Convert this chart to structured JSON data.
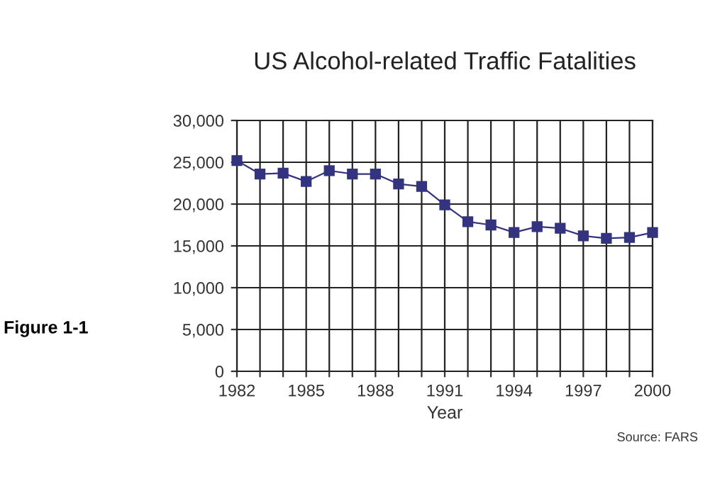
{
  "chart_data": {
    "type": "line",
    "title": "US Alcohol-related Traffic Fatalities",
    "xlabel": "Year",
    "x": [
      1982,
      1983,
      1984,
      1985,
      1986,
      1987,
      1988,
      1989,
      1990,
      1991,
      1992,
      1993,
      1994,
      1995,
      1996,
      1997,
      1998,
      1999,
      2000
    ],
    "series": [
      {
        "color": "#333380",
        "values": [
          25200,
          23600,
          23700,
          22700,
          24000,
          23600,
          23600,
          22400,
          22100,
          19900,
          17900,
          17500,
          16600,
          17300,
          17100,
          16200,
          15900,
          16000,
          16600
        ]
      }
    ],
    "xlim": [
      1982,
      2000
    ],
    "xticks": [
      1982,
      {
        "value": 1983,
        "label": null
      },
      {
        "value": 1984,
        "label": null
      },
      1985,
      {
        "value": 1986,
        "label": null
      },
      {
        "value": 1987,
        "label": null
      },
      1988,
      {
        "value": 1989,
        "label": null
      },
      {
        "value": 1990,
        "label": null
      },
      1991,
      {
        "value": 1992,
        "label": null
      },
      {
        "value": 1993,
        "label": null
      },
      1994,
      {
        "value": 1995,
        "label": null
      },
      {
        "value": 1996,
        "label": null
      },
      1997,
      {
        "value": 1998,
        "label": null
      },
      {
        "value": 1999,
        "label": null
      },
      2000
    ],
    "ylim": [
      0,
      30000
    ],
    "yticks": [
      {
        "value": 0,
        "label": "0"
      },
      {
        "value": 5000,
        "label": "5,000"
      },
      {
        "value": 10000,
        "label": "10,000"
      },
      {
        "value": 15000,
        "label": "15,000"
      },
      {
        "value": 20000,
        "label": "20,000"
      },
      {
        "value": 25000,
        "label": "25,000"
      },
      {
        "value": 30000,
        "label": "30,000"
      }
    ],
    "grid": true,
    "marker": "square",
    "line_style": "solid",
    "annotations": [
      "Figure 1-1",
      "Source: FARS"
    ]
  }
}
